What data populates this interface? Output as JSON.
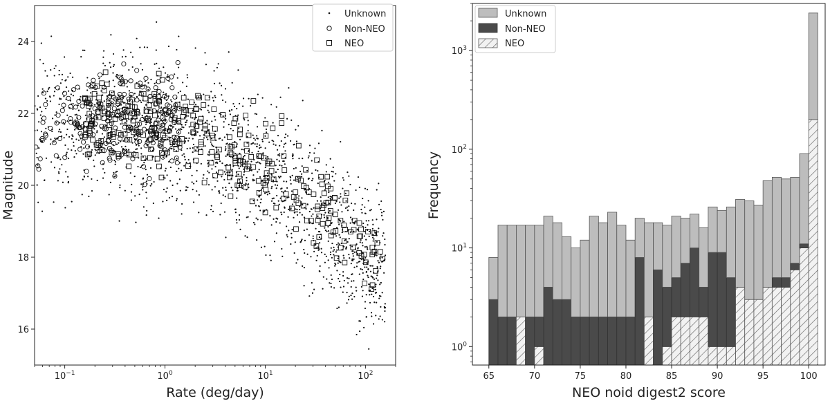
{
  "chart_data": [
    {
      "type": "scatter",
      "xscale": "log",
      "xlabel": "Rate (deg/day)",
      "ylabel": "Magnitude",
      "xlim": [
        0.05,
        200
      ],
      "ylim": [
        15,
        25
      ],
      "xticks": [
        {
          "value": 0.1,
          "base": "10",
          "exp": "−1"
        },
        {
          "value": 1,
          "base": "10",
          "exp": "0"
        },
        {
          "value": 10,
          "base": "10",
          "exp": "1"
        },
        {
          "value": 100,
          "base": "10",
          "exp": "2"
        }
      ],
      "yticks": [
        16,
        18,
        20,
        22,
        24
      ],
      "legend": {
        "location": "top-right",
        "entries": [
          "Unknown",
          "Non-NEO",
          "NEO"
        ]
      },
      "series": [
        {
          "name": "Unknown",
          "marker": "dot",
          "cloud": {
            "count": 1700,
            "log10_rate_range": [
              -1.3,
              2.2
            ],
            "trend": "magnitude ≈ 21.6 at rate 1, decreasing to ≈ 17 at rate 100; spread ± ~1.2 mag"
          }
        },
        {
          "name": "Non-NEO",
          "marker": "circle",
          "cloud": {
            "count": 230,
            "log10_rate_range": [
              -1.3,
              0.15
            ],
            "trend": "magnitude ≈ 21.8 with spread ± ~1 mag"
          }
        },
        {
          "name": "NEO",
          "marker": "square",
          "cloud": {
            "count": 330,
            "log10_rate_range": [
              -0.8,
              2.2
            ],
            "trend": "magnitude ≈ 21.8 at rate 0.3, decreasing to ≈ 17 at rate 100"
          }
        }
      ]
    },
    {
      "type": "bar",
      "stacked": true,
      "yscale": "log",
      "xlabel": "NEO noid digest2 score",
      "ylabel": "Frequency",
      "xlim": [
        63.2,
        101.8
      ],
      "ylim": [
        0.65,
        3000
      ],
      "xticks": [
        65,
        70,
        75,
        80,
        85,
        90,
        95,
        100
      ],
      "yticks": [
        {
          "value": 1,
          "base": "10",
          "exp": "0"
        },
        {
          "value": 10,
          "base": "10",
          "exp": "1"
        },
        {
          "value": 100,
          "base": "10",
          "exp": "2"
        },
        {
          "value": 1000,
          "base": "10",
          "exp": "3"
        }
      ],
      "legend": {
        "location": "top-left",
        "entries": [
          "Unknown",
          "Non-NEO",
          "NEO"
        ]
      },
      "bin_start": 65,
      "bin_width": 1,
      "series": [
        {
          "name": "NEO",
          "values": [
            0,
            0,
            0,
            2,
            0,
            1,
            0,
            0,
            0,
            0,
            0,
            0,
            0,
            0,
            0,
            0,
            0,
            2,
            0,
            1,
            2,
            2,
            2,
            2,
            1,
            1,
            1,
            4,
            3,
            3,
            4,
            4,
            4,
            6,
            10,
            200
          ]
        },
        {
          "name": "Non-NEO",
          "values": [
            3,
            2,
            2,
            0,
            2,
            1,
            4,
            3,
            3,
            2,
            2,
            2,
            2,
            2,
            2,
            2,
            8,
            0,
            6,
            3,
            3,
            5,
            8,
            2,
            8,
            8,
            4,
            0,
            0,
            0,
            0,
            1,
            1,
            1,
            1,
            0
          ]
        },
        {
          "name": "Unknown",
          "values": [
            5,
            15,
            15,
            15,
            15,
            15,
            17,
            15,
            10,
            8,
            10,
            19,
            16,
            21,
            15,
            10,
            12,
            16,
            12,
            13,
            16,
            13,
            12,
            12,
            17,
            15,
            21,
            27,
            27,
            24,
            44,
            47,
            45,
            45,
            79,
            2200
          ]
        }
      ]
    }
  ]
}
